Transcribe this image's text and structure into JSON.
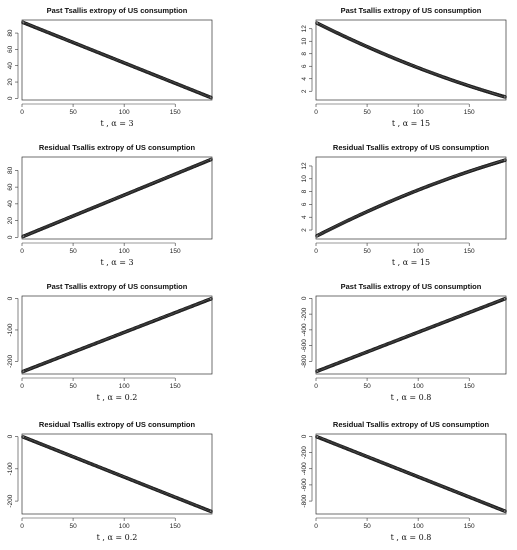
{
  "chart_data": [
    {
      "type": "scatter",
      "title": "Past Tsallis extropy of US consumption",
      "xlabel": "t , α = 3",
      "xlim": [
        0,
        186
      ],
      "ylim": [
        -2,
        96
      ],
      "xticks": [
        0,
        50,
        100,
        150
      ],
      "yticks": [
        0,
        20,
        40,
        60,
        80
      ],
      "series": [
        {
          "x_range": [
            1,
            185
          ],
          "y_start": 93,
          "y_end": 1,
          "curve": 0
        }
      ]
    },
    {
      "type": "scatter",
      "title": "Past Tsallis extropy of US consumption",
      "xlabel": "t , α = 15",
      "xlim": [
        0,
        186
      ],
      "ylim": [
        0.6,
        13.4
      ],
      "xticks": [
        0,
        50,
        100,
        150
      ],
      "yticks": [
        2,
        4,
        6,
        8,
        10,
        12
      ],
      "series": [
        {
          "x_range": [
            1,
            185
          ],
          "y_start": 12.9,
          "y_end": 1.1,
          "curve": -1.6
        }
      ]
    },
    {
      "type": "scatter",
      "title": "Residual Tsallis extropy of US consumption",
      "xlabel": "t , α = 3",
      "xlim": [
        0,
        186
      ],
      "ylim": [
        -2,
        96
      ],
      "xticks": [
        0,
        50,
        100,
        150
      ],
      "yticks": [
        0,
        20,
        40,
        60,
        80
      ],
      "series": [
        {
          "x_range": [
            1,
            185
          ],
          "y_start": 1,
          "y_end": 93,
          "curve": 0
        }
      ]
    },
    {
      "type": "scatter",
      "title": "Residual Tsallis extropy of US consumption",
      "xlabel": "t , α = 15",
      "xlim": [
        0,
        186
      ],
      "ylim": [
        0.6,
        13.4
      ],
      "xticks": [
        0,
        50,
        100,
        150
      ],
      "yticks": [
        2,
        4,
        6,
        8,
        10,
        12
      ],
      "series": [
        {
          "x_range": [
            1,
            185
          ],
          "y_start": 1.1,
          "y_end": 12.9,
          "curve": 1.6
        }
      ]
    },
    {
      "type": "scatter",
      "title": "Past Tsallis extropy of US consumption",
      "xlabel": "t , α = 0.2",
      "xlim": [
        0,
        186
      ],
      "ylim": [
        -240,
        8
      ],
      "xticks": [
        0,
        50,
        100,
        150
      ],
      "yticks": [
        -200,
        -100,
        0
      ],
      "series": [
        {
          "x_range": [
            1,
            185
          ],
          "y_start": -232,
          "y_end": -1,
          "curve": 0
        }
      ]
    },
    {
      "type": "scatter",
      "title": "Past Tsallis extropy of US consumption",
      "xlabel": "t , α = 0.8",
      "xlim": [
        0,
        186
      ],
      "ylim": [
        -960,
        30
      ],
      "xticks": [
        0,
        50,
        100,
        150
      ],
      "yticks": [
        -800,
        -600,
        -400,
        -200,
        0
      ],
      "series": [
        {
          "x_range": [
            1,
            185
          ],
          "y_start": -925,
          "y_end": -5,
          "curve": 0
        }
      ]
    },
    {
      "type": "scatter",
      "title": "Residual Tsallis extropy of US consumption",
      "xlabel": "t , α = 0.2",
      "xlim": [
        0,
        186
      ],
      "ylim": [
        -240,
        8
      ],
      "xticks": [
        0,
        50,
        100,
        150
      ],
      "yticks": [
        -200,
        -100,
        0
      ],
      "series": [
        {
          "x_range": [
            1,
            185
          ],
          "y_start": -1,
          "y_end": -232,
          "curve": 0
        }
      ]
    },
    {
      "type": "scatter",
      "title": "Residual Tsallis extropy of US consumption",
      "xlabel": "t , α = 0.8",
      "xlim": [
        0,
        186
      ],
      "ylim": [
        -960,
        30
      ],
      "xticks": [
        0,
        50,
        100,
        150
      ],
      "yticks": [
        -800,
        -600,
        -400,
        -200,
        0
      ],
      "series": [
        {
          "x_range": [
            1,
            185
          ],
          "y_start": -5,
          "y_end": -925,
          "curve": 0
        }
      ]
    }
  ]
}
